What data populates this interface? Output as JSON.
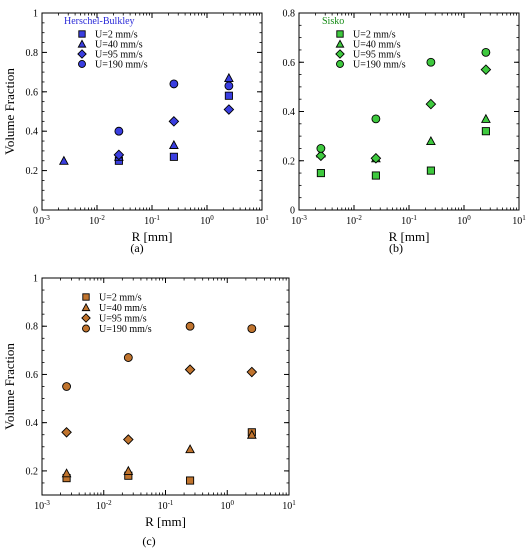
{
  "chart_data": [
    {
      "type": "scatter",
      "title": "Herschel-Bulkley",
      "title_color": "#2b2bd8",
      "xlabel": "R [mm]",
      "ylabel": "Volume Fraction",
      "xscale": "log",
      "xlim": [
        0.001,
        10
      ],
      "ylim": [
        0,
        1
      ],
      "xticks": [
        "10-3",
        "10-2",
        "10-1",
        "100",
        "101"
      ],
      "yticks": [
        "0",
        "0.2",
        "0.4",
        "0.6",
        "0.8",
        "1"
      ],
      "caption": "(a)",
      "legend_position": "top-left",
      "fill_color": "#3a3ee0",
      "series": [
        {
          "name": "U=2 mm/s",
          "marker": "square",
          "x": [
            0.025,
            0.25,
            2.5
          ],
          "y": [
            0.25,
            0.27,
            0.58
          ]
        },
        {
          "name": "U=40 mm/s",
          "marker": "triangle",
          "x": [
            0.0025,
            0.025,
            0.25,
            2.5
          ],
          "y": [
            0.25,
            0.27,
            0.33,
            0.67
          ]
        },
        {
          "name": "U=95 mm/s",
          "marker": "diamond",
          "x": [
            0.025,
            0.25,
            2.5
          ],
          "y": [
            0.28,
            0.45,
            0.51
          ]
        },
        {
          "name": "U=190 mm/s",
          "marker": "circle",
          "x": [
            0.025,
            0.25,
            2.5
          ],
          "y": [
            0.4,
            0.64,
            0.63
          ]
        }
      ]
    },
    {
      "type": "scatter",
      "title": "Sisko",
      "title_color": "#138a13",
      "xlabel": "R [mm]",
      "ylabel": "",
      "xscale": "log",
      "xlim": [
        0.001,
        10
      ],
      "ylim": [
        0,
        0.8
      ],
      "xticks": [
        "10-3",
        "10-2",
        "10-1",
        "100",
        "101"
      ],
      "yticks": [
        "0",
        "0.2",
        "0.4",
        "0.6",
        "0.8"
      ],
      "caption": "(b)",
      "legend_position": "top-left",
      "fill_color": "#3ec93e",
      "series": [
        {
          "name": "U=2 mm/s",
          "marker": "square",
          "x": [
            0.0025,
            0.025,
            0.25,
            2.5
          ],
          "y": [
            0.15,
            0.14,
            0.16,
            0.32
          ]
        },
        {
          "name": "U=40 mm/s",
          "marker": "triangle",
          "x": [
            0.0025,
            0.025,
            0.25,
            2.5
          ],
          "y": [
            0.23,
            0.21,
            0.28,
            0.37
          ]
        },
        {
          "name": "U=95 mm/s",
          "marker": "diamond",
          "x": [
            0.0025,
            0.025,
            0.25,
            2.5
          ],
          "y": [
            0.22,
            0.21,
            0.43,
            0.57
          ]
        },
        {
          "name": "U=190 mm/s",
          "marker": "circle",
          "x": [
            0.0025,
            0.025,
            0.25,
            2.5
          ],
          "y": [
            0.25,
            0.37,
            0.6,
            0.64
          ]
        }
      ]
    },
    {
      "type": "scatter",
      "title": "",
      "xlabel": "R [mm]",
      "ylabel": "Volume Fraction",
      "xscale": "log",
      "xlim": [
        0.001,
        10
      ],
      "ylim": [
        0.1,
        1
      ],
      "xticks": [
        "10-3",
        "10-2",
        "10-1",
        "100",
        "101"
      ],
      "yticks": [
        "0.2",
        "0.4",
        "0.6",
        "0.8",
        "1"
      ],
      "caption": "(c)",
      "legend_position": "top-left",
      "fill_color": "#c0742e",
      "series": [
        {
          "name": "U=2 mm/s",
          "marker": "square",
          "x": [
            0.0025,
            0.025,
            0.25,
            2.5
          ],
          "y": [
            0.17,
            0.18,
            0.16,
            0.36
          ]
        },
        {
          "name": "U=40 mm/s",
          "marker": "triangle",
          "x": [
            0.0025,
            0.025,
            0.25,
            2.5
          ],
          "y": [
            0.19,
            0.2,
            0.29,
            0.35
          ]
        },
        {
          "name": "U=95 mm/s",
          "marker": "diamond",
          "x": [
            0.0025,
            0.025,
            0.25,
            2.5
          ],
          "y": [
            0.36,
            0.33,
            0.62,
            0.61
          ]
        },
        {
          "name": "U=190 mm/s",
          "marker": "circle",
          "x": [
            0.0025,
            0.025,
            0.25,
            2.5
          ],
          "y": [
            0.55,
            0.67,
            0.8,
            0.79
          ]
        }
      ]
    }
  ]
}
